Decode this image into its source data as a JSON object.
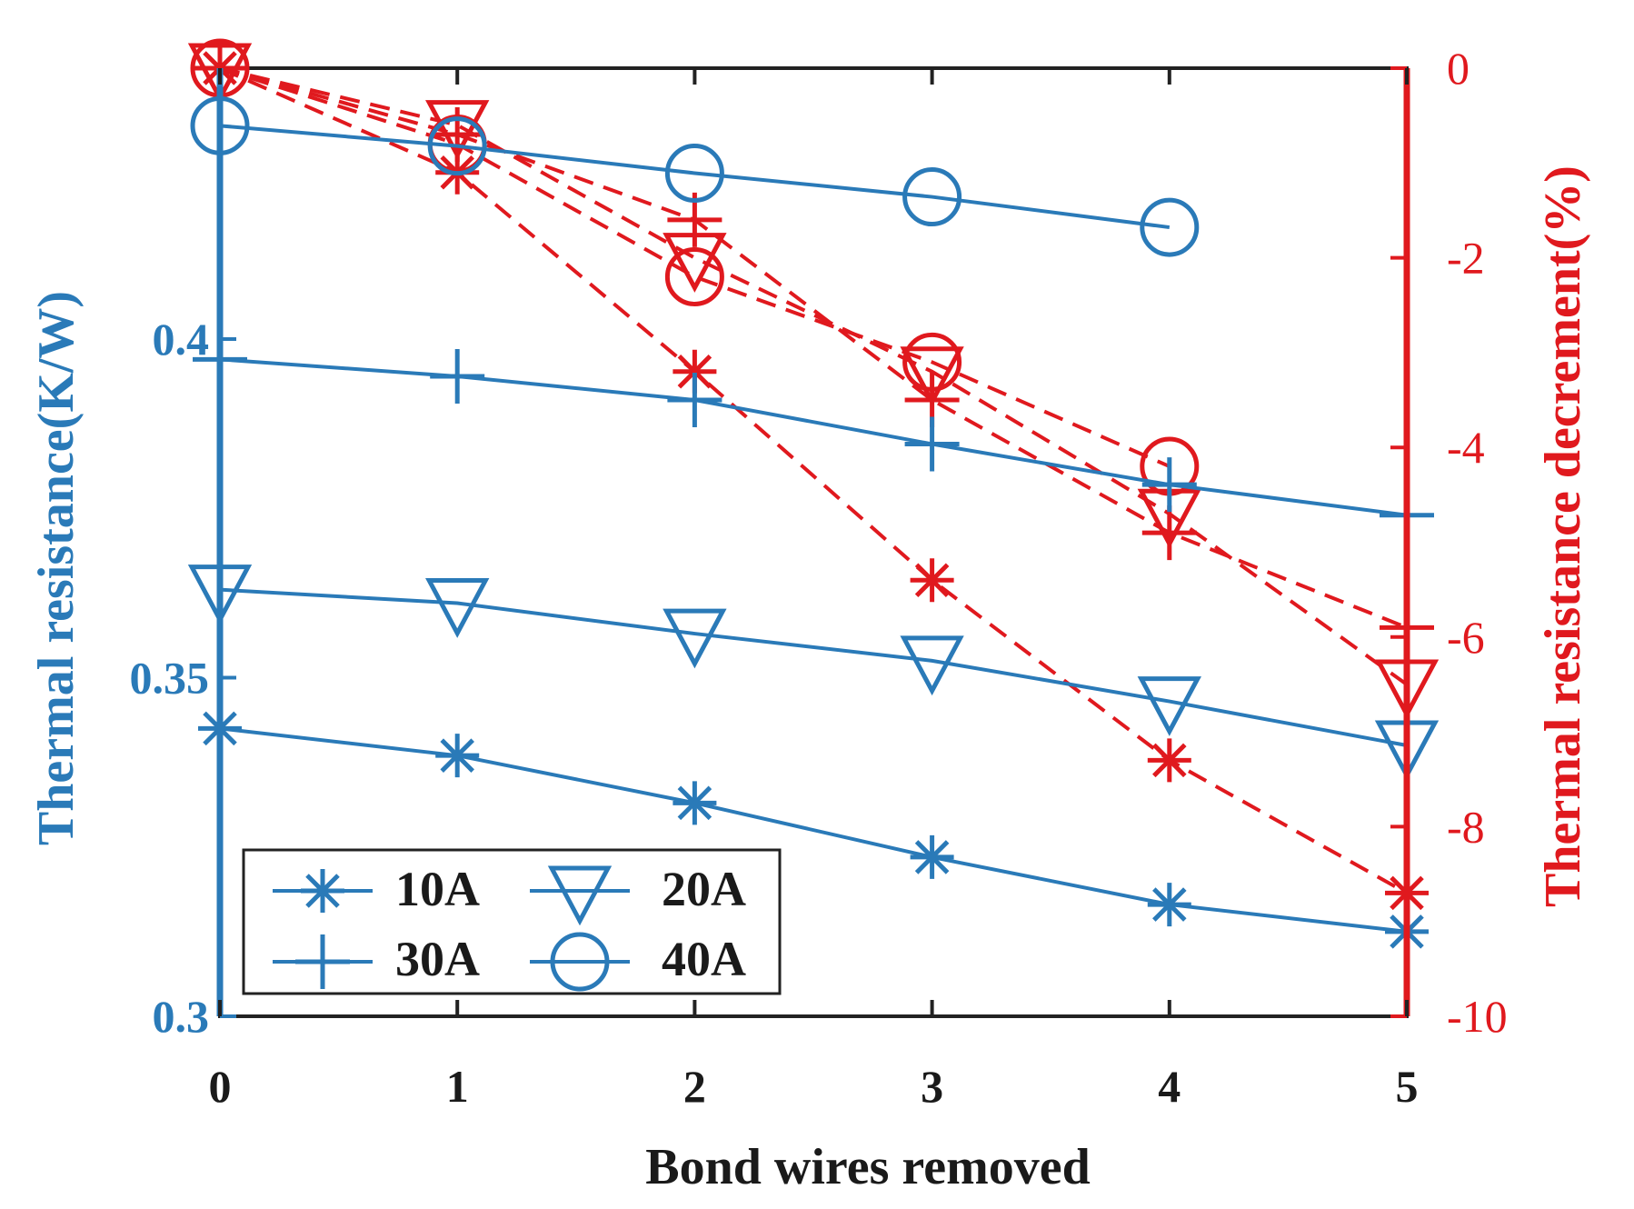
{
  "chart_data": {
    "type": "line",
    "xlabel": "Bond wires removed",
    "ylabel_left": "Thermal resistance(K/W)",
    "ylabel_right": "Thermal resistance decrement(%)",
    "x": [
      0,
      1,
      2,
      3,
      4,
      5
    ],
    "xlim": [
      0,
      5
    ],
    "ylim_left": [
      0.3,
      0.44
    ],
    "ylim_right": [
      -10,
      0
    ],
    "x_ticks": [
      "0",
      "1",
      "2",
      "3",
      "4",
      "5"
    ],
    "y_ticks_left": [
      {
        "value": 0.3,
        "label": "0.3"
      },
      {
        "value": 0.35,
        "label": "0.35"
      },
      {
        "value": 0.4,
        "label": "0.4"
      }
    ],
    "y_ticks_right": [
      {
        "value": 0,
        "label": "0"
      },
      {
        "value": -2,
        "label": "-2"
      },
      {
        "value": -4,
        "label": "-4"
      },
      {
        "value": -6,
        "label": "-6"
      },
      {
        "value": -8,
        "label": "-8"
      },
      {
        "value": -10,
        "label": "-10"
      }
    ],
    "left_color": "#2a7ab8",
    "right_color": "#e0191e",
    "legend": {
      "placement": "bottom-left",
      "entries": [
        {
          "name": "10A",
          "marker": "asterisk"
        },
        {
          "name": "20A",
          "marker": "triangle-down"
        },
        {
          "name": "30A",
          "marker": "plus"
        },
        {
          "name": "40A",
          "marker": "circle"
        }
      ]
    },
    "series_left": [
      {
        "name": "10A",
        "marker": "asterisk",
        "values": [
          0.3425,
          0.3385,
          0.3315,
          0.3235,
          0.3165,
          0.3125
        ]
      },
      {
        "name": "20A",
        "marker": "triangle-down",
        "values": [
          0.363,
          0.361,
          0.3565,
          0.3525,
          0.3465,
          0.34
        ]
      },
      {
        "name": "30A",
        "marker": "plus",
        "values": [
          0.397,
          0.3945,
          0.391,
          0.3845,
          0.3785,
          0.374
        ]
      },
      {
        "name": "40A",
        "marker": "circle",
        "values": [
          0.4315,
          0.4285,
          0.4245,
          0.421,
          0.4165,
          null
        ]
      }
    ],
    "series_right": [
      {
        "name": "10A",
        "marker": "asterisk",
        "values": [
          0,
          -1.1,
          -3.2,
          -5.4,
          -7.3,
          -8.7
        ]
      },
      {
        "name": "20A",
        "marker": "triangle-down",
        "values": [
          0,
          -0.6,
          -2.0,
          -3.2,
          -4.7,
          -6.5
        ]
      },
      {
        "name": "30A",
        "marker": "plus",
        "values": [
          0,
          -0.7,
          -1.6,
          -3.5,
          -4.9,
          -5.9
        ]
      },
      {
        "name": "40A",
        "marker": "circle",
        "values": [
          0,
          -0.8,
          -2.2,
          -3.1,
          -4.2,
          null
        ]
      }
    ]
  }
}
